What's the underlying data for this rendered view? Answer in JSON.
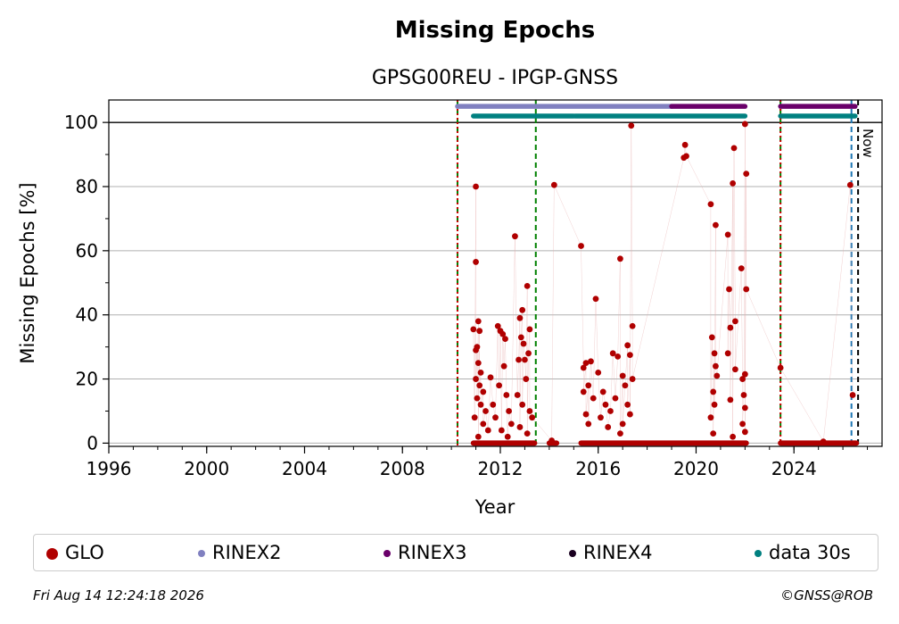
{
  "chart_data": {
    "type": "scatter",
    "title": "Missing Epochs",
    "subtitle": "GPSG00REU - IPGP-GNSS",
    "xlabel": "Year",
    "ylabel": "Missing Epochs [%]",
    "xlim": [
      1996,
      2027.6
    ],
    "ylim": [
      -1,
      107
    ],
    "x_ticks": [
      "1996",
      "2000",
      "2004",
      "2008",
      "2012",
      "2016",
      "2020",
      "2024"
    ],
    "y_ticks": [
      "0",
      "20",
      "40",
      "60",
      "80",
      "100"
    ],
    "grid": true,
    "legend_position": "bottom",
    "now_label": "Now",
    "now_year": 2026.62,
    "reference_line_y": 100,
    "vertical_lines": [
      {
        "x": 2010.25,
        "color": "#008000",
        "style": "dashed"
      },
      {
        "x": 2010.25,
        "color": "#cc0000",
        "style": "dotted"
      },
      {
        "x": 2013.45,
        "color": "#008000",
        "style": "dashed"
      },
      {
        "x": 2023.45,
        "color": "#008000",
        "style": "dashed"
      },
      {
        "x": 2023.45,
        "color": "#cc0000",
        "style": "dotted"
      },
      {
        "x": 2026.35,
        "color": "#1f77b4",
        "style": "dashed"
      },
      {
        "x": 2026.62,
        "color": "#000000",
        "style": "dashed"
      }
    ],
    "bars": [
      {
        "series": "RINEX2",
        "y": 105,
        "from": 2010.25,
        "to": 2019.0,
        "color": "#8080c0"
      },
      {
        "series": "RINEX3",
        "y": 105,
        "from": 2019.0,
        "to": 2022.0,
        "color": "#6a006a"
      },
      {
        "series": "RINEX3",
        "y": 105,
        "from": 2023.45,
        "to": 2026.5,
        "color": "#6a006a"
      },
      {
        "series": "data 30s",
        "y": 102,
        "from": 2010.9,
        "to": 2015.0,
        "color": "#008080"
      },
      {
        "series": "data 30s",
        "y": 102,
        "from": 2015.05,
        "to": 2022.0,
        "color": "#008080"
      },
      {
        "series": "data 30s",
        "y": 102,
        "from": 2023.45,
        "to": 2026.5,
        "color": "#008080"
      }
    ],
    "series": [
      {
        "name": "GLO",
        "color": "#b00000",
        "points": [
          [
            2010.9,
            35.5
          ],
          [
            2011.0,
            80.0
          ],
          [
            2011.0,
            56.5
          ],
          [
            2011.1,
            38.0
          ],
          [
            2011.15,
            35.0
          ],
          [
            2011.05,
            30.0
          ],
          [
            2011.0,
            29.0
          ],
          [
            2011.1,
            25.0
          ],
          [
            2011.2,
            22.0
          ],
          [
            2011.0,
            20.0
          ],
          [
            2011.15,
            18.0
          ],
          [
            2011.3,
            16.0
          ],
          [
            2011.05,
            14.0
          ],
          [
            2011.2,
            12.0
          ],
          [
            2011.4,
            10.0
          ],
          [
            2010.95,
            8.0
          ],
          [
            2011.3,
            6.0
          ],
          [
            2011.5,
            4.0
          ],
          [
            2011.1,
            2.0
          ],
          [
            2011.6,
            20.5
          ],
          [
            2011.7,
            12.0
          ],
          [
            2011.8,
            8.0
          ],
          [
            2011.9,
            36.5
          ],
          [
            2012.0,
            35.0
          ],
          [
            2012.1,
            34.0
          ],
          [
            2012.2,
            32.5
          ],
          [
            2011.95,
            18.0
          ],
          [
            2012.15,
            24.0
          ],
          [
            2012.25,
            15.0
          ],
          [
            2012.35,
            10.0
          ],
          [
            2012.45,
            6.0
          ],
          [
            2012.05,
            4.0
          ],
          [
            2012.3,
            2.0
          ],
          [
            2012.6,
            64.5
          ],
          [
            2012.8,
            39.0
          ],
          [
            2012.9,
            41.5
          ],
          [
            2013.0,
            26.0
          ],
          [
            2013.1,
            49.0
          ],
          [
            2013.2,
            35.5
          ],
          [
            2013.15,
            28.0
          ],
          [
            2012.75,
            26.0
          ],
          [
            2012.85,
            33.0
          ],
          [
            2012.95,
            31.0
          ],
          [
            2013.05,
            20.0
          ],
          [
            2012.7,
            15.0
          ],
          [
            2012.9,
            12.0
          ],
          [
            2013.2,
            10.0
          ],
          [
            2013.3,
            8.0
          ],
          [
            2012.8,
            5.0
          ],
          [
            2013.1,
            3.0
          ],
          [
            2014.2,
            80.5
          ],
          [
            2014.1,
            0.8
          ],
          [
            2015.3,
            61.5
          ],
          [
            2015.4,
            23.5
          ],
          [
            2015.5,
            25.0
          ],
          [
            2015.7,
            25.5
          ],
          [
            2015.6,
            18.0
          ],
          [
            2015.4,
            16.0
          ],
          [
            2015.8,
            14.0
          ],
          [
            2015.5,
            9.0
          ],
          [
            2015.6,
            6.0
          ],
          [
            2015.9,
            45.0
          ],
          [
            2016.0,
            22.0
          ],
          [
            2016.2,
            16.0
          ],
          [
            2016.3,
            12.0
          ],
          [
            2016.1,
            8.0
          ],
          [
            2016.4,
            5.0
          ],
          [
            2016.6,
            28.0
          ],
          [
            2016.8,
            27.0
          ],
          [
            2016.9,
            57.5
          ],
          [
            2017.0,
            21.0
          ],
          [
            2017.1,
            18.0
          ],
          [
            2017.2,
            30.5
          ],
          [
            2017.3,
            27.5
          ],
          [
            2017.35,
            99.0
          ],
          [
            2017.4,
            36.5
          ],
          [
            2017.4,
            20.0
          ],
          [
            2017.2,
            12.0
          ],
          [
            2017.3,
            9.0
          ],
          [
            2017.0,
            6.0
          ],
          [
            2016.7,
            14.0
          ],
          [
            2016.5,
            10.0
          ],
          [
            2016.9,
            3.0
          ],
          [
            2019.5,
            89.0
          ],
          [
            2019.55,
            93.0
          ],
          [
            2019.6,
            89.5
          ],
          [
            2020.6,
            74.5
          ],
          [
            2020.8,
            68.0
          ],
          [
            2020.65,
            33.0
          ],
          [
            2020.75,
            28.0
          ],
          [
            2020.8,
            24.0
          ],
          [
            2020.85,
            21.0
          ],
          [
            2020.7,
            16.0
          ],
          [
            2020.75,
            12.0
          ],
          [
            2020.6,
            8.0
          ],
          [
            2020.7,
            3.0
          ],
          [
            2021.3,
            65.0
          ],
          [
            2021.35,
            48.0
          ],
          [
            2021.4,
            36.0
          ],
          [
            2021.3,
            28.0
          ],
          [
            2021.5,
            81.0
          ],
          [
            2021.55,
            92.0
          ],
          [
            2021.6,
            38.0
          ],
          [
            2021.6,
            23.0
          ],
          [
            2021.4,
            13.5
          ],
          [
            2021.5,
            2.0
          ],
          [
            2021.85,
            54.5
          ],
          [
            2022.0,
            99.5
          ],
          [
            2022.05,
            84.0
          ],
          [
            2022.05,
            48.0
          ],
          [
            2021.9,
            20.0
          ],
          [
            2022.0,
            21.5
          ],
          [
            2021.95,
            15.0
          ],
          [
            2022.0,
            11.0
          ],
          [
            2021.9,
            6.0
          ],
          [
            2022.0,
            3.5
          ],
          [
            2023.45,
            23.5
          ],
          [
            2025.2,
            0.5
          ],
          [
            2026.3,
            80.5
          ],
          [
            2026.4,
            15.0
          ]
        ],
        "zero_runs": [
          [
            2010.9,
            2013.4
          ],
          [
            2014.0,
            2014.3
          ],
          [
            2015.3,
            2022.05
          ],
          [
            2023.45,
            2026.55
          ]
        ]
      }
    ],
    "legend": [
      {
        "name": "GLO",
        "color": "#b00000"
      },
      {
        "name": "RINEX2",
        "color": "#8080c0"
      },
      {
        "name": "RINEX3",
        "color": "#6a006a"
      },
      {
        "name": "RINEX4",
        "color": "#1a0020"
      },
      {
        "name": "data 30s",
        "color": "#008080"
      }
    ]
  },
  "footer": {
    "timestamp": "Fri Aug 14 12:24:18 2026",
    "copyright": "©GNSS@ROB"
  }
}
